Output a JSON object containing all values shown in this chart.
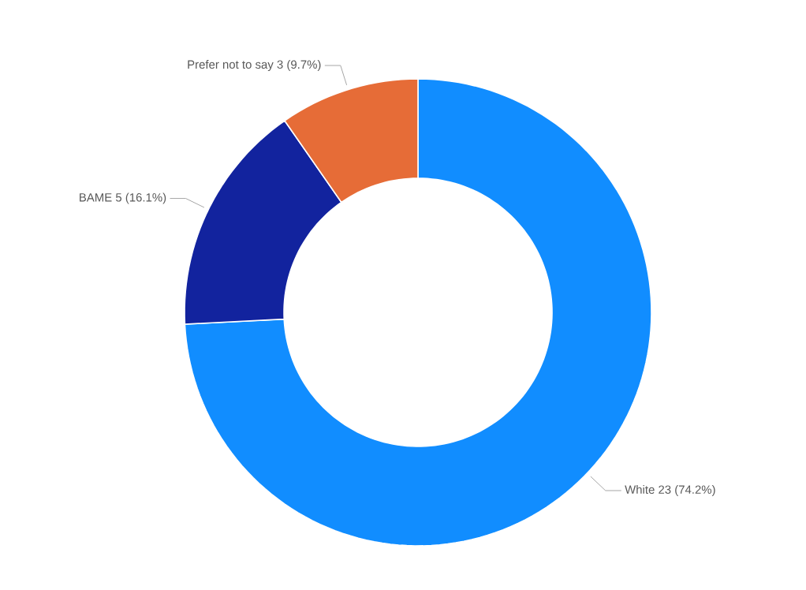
{
  "chart_data": {
    "type": "donut",
    "categories": [
      "White",
      "BAME",
      "Prefer not to say"
    ],
    "values": [
      23,
      5,
      3
    ],
    "value_labels": [
      "23 (74.2%)",
      "5 (16.1%)",
      "3 (9.7%)"
    ],
    "colors": [
      "#118dff",
      "#12239e",
      "#e66c37"
    ]
  }
}
